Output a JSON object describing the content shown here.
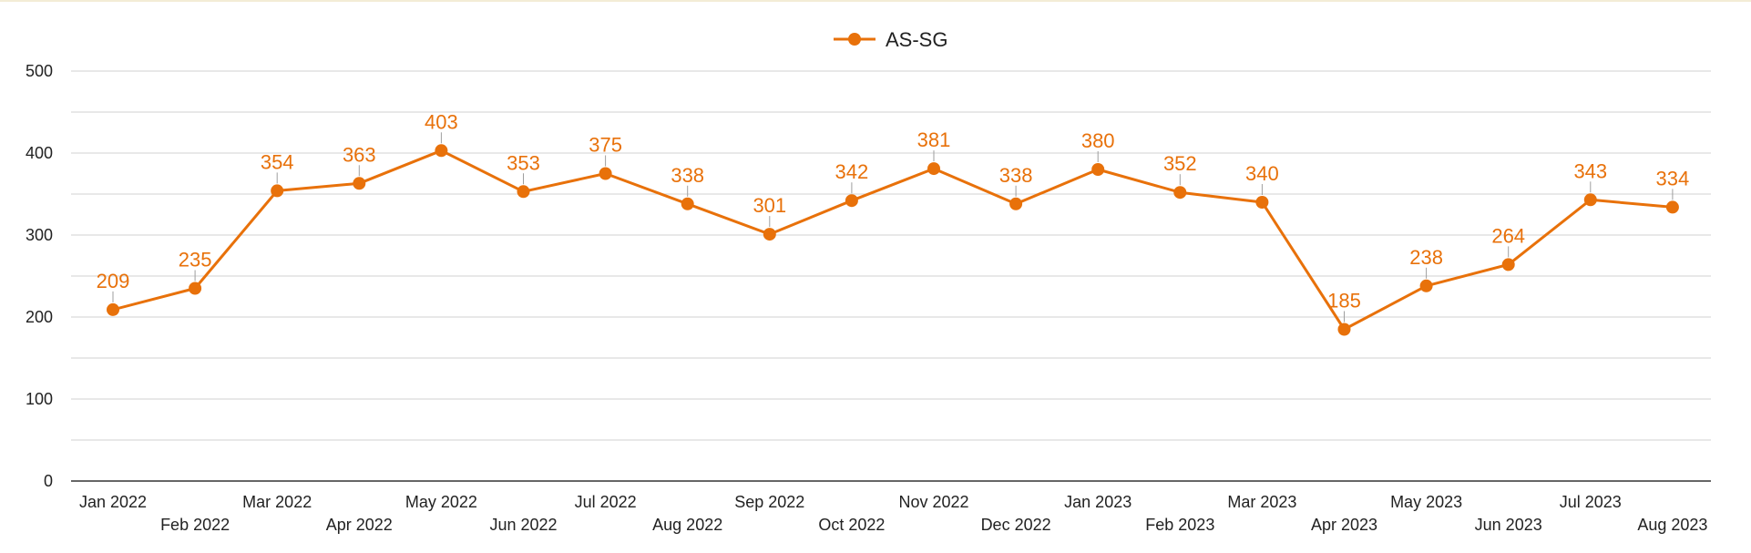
{
  "colors": {
    "series": "#e8710a",
    "grid": "#d9d9d9",
    "axis": "#333333",
    "text": "#222222",
    "leader": "#9e9e9e"
  },
  "chart_data": {
    "type": "line",
    "title": "",
    "xlabel": "",
    "ylabel": "",
    "ylim": [
      0,
      500
    ],
    "yticks": [
      0,
      100,
      200,
      300,
      400,
      500
    ],
    "grid": true,
    "legend": {
      "position": "top-center",
      "marker": "line-with-dot"
    },
    "categories": [
      "Jan 2022",
      "Feb 2022",
      "Mar 2022",
      "Apr 2022",
      "May 2022",
      "Jun 2022",
      "Jul 2022",
      "Aug 2022",
      "Sep 2022",
      "Oct 2022",
      "Nov 2022",
      "Dec 2022",
      "Jan 2023",
      "Feb 2023",
      "Mar 2023",
      "Apr 2023",
      "May 2023",
      "Jun 2023",
      "Jul 2023",
      "Aug 2023"
    ],
    "series": [
      {
        "name": "AS-SG",
        "values": [
          209,
          235,
          354,
          363,
          403,
          353,
          375,
          338,
          301,
          342,
          381,
          338,
          380,
          352,
          340,
          185,
          238,
          264,
          343,
          334
        ],
        "data_labels": true
      }
    ]
  }
}
